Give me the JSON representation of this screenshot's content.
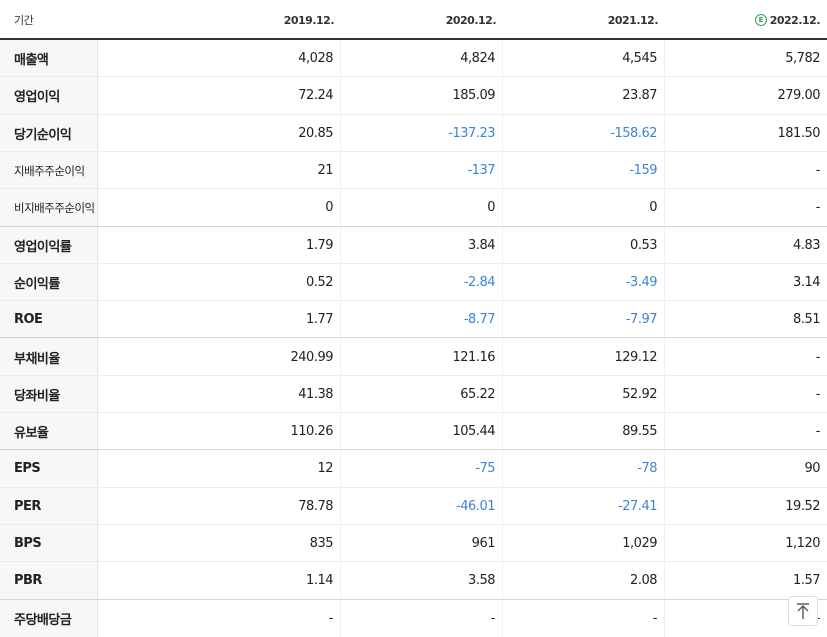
{
  "header": {
    "label": "기간",
    "periods": [
      "2019.12.",
      "2020.12.",
      "2021.12.",
      "2022.12."
    ],
    "estimate_badge": "E"
  },
  "negative_color": "#3d84d6",
  "rows": [
    {
      "label": "매출액",
      "values": [
        "4,028",
        "4,824",
        "4,545",
        "5,782"
      ]
    },
    {
      "label": "영업이익",
      "values": [
        "72.24",
        "185.09",
        "23.87",
        "279.00"
      ]
    },
    {
      "label": "당기순이익",
      "values": [
        "20.85",
        "-137.23",
        "-158.62",
        "181.50"
      ]
    },
    {
      "label": "지배주주순이익",
      "values": [
        "21",
        "-137",
        "-159",
        "-"
      ]
    },
    {
      "label": "비지배주주순이익",
      "values": [
        "0",
        "0",
        "0",
        "-"
      ]
    },
    {
      "label": "영업이익률",
      "values": [
        "1.79",
        "3.84",
        "0.53",
        "4.83"
      ]
    },
    {
      "label": "순이익률",
      "values": [
        "0.52",
        "-2.84",
        "-3.49",
        "3.14"
      ]
    },
    {
      "label": "ROE",
      "values": [
        "1.77",
        "-8.77",
        "-7.97",
        "8.51"
      ]
    },
    {
      "label": "부채비율",
      "values": [
        "240.99",
        "121.16",
        "129.12",
        "-"
      ]
    },
    {
      "label": "당좌비율",
      "values": [
        "41.38",
        "65.22",
        "52.92",
        "-"
      ]
    },
    {
      "label": "유보율",
      "values": [
        "110.26",
        "105.44",
        "89.55",
        "-"
      ]
    },
    {
      "label": "EPS",
      "values": [
        "12",
        "-75",
        "-78",
        "90"
      ]
    },
    {
      "label": "PER",
      "values": [
        "78.78",
        "-46.01",
        "-27.41",
        "19.52"
      ]
    },
    {
      "label": "BPS",
      "values": [
        "835",
        "961",
        "1,029",
        "1,120"
      ]
    },
    {
      "label": "PBR",
      "values": [
        "1.14",
        "3.58",
        "2.08",
        "1.57"
      ]
    },
    {
      "label": "주당배당금",
      "values": [
        "-",
        "-",
        "-",
        "-"
      ]
    }
  ]
}
